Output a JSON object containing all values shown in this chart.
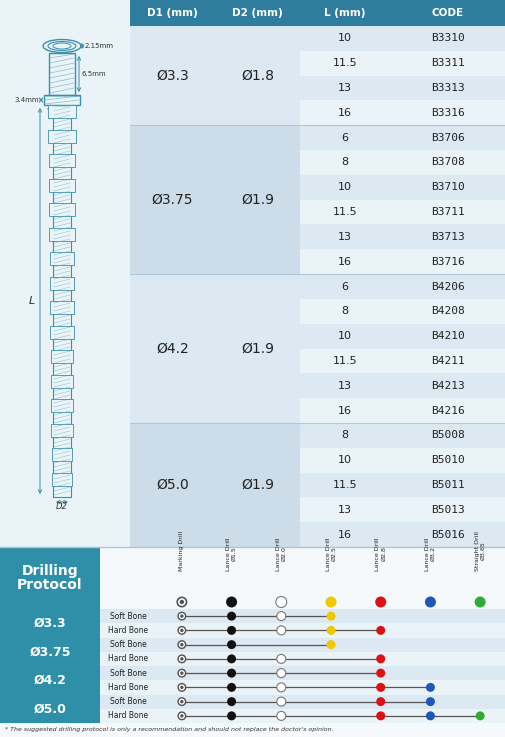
{
  "header_bg": "#2e7d9e",
  "row_light": "#dce8f2",
  "row_alt": "#eaf3f8",
  "left_bg": "#eaf3f8",
  "drilling_blue": "#2e8fa8",
  "col_headers": [
    "D1 (mm)",
    "D2 (mm)",
    "L (mm)",
    "CODE"
  ],
  "groups": [
    {
      "d1": "Ø3.3",
      "d2": "Ø1.8",
      "rows": [
        [
          "10",
          "B3310"
        ],
        [
          "11.5",
          "B3311"
        ],
        [
          "13",
          "B3313"
        ],
        [
          "16",
          "B3316"
        ]
      ]
    },
    {
      "d1": "Ø3.75",
      "d2": "Ø1.9",
      "rows": [
        [
          "6",
          "B3706"
        ],
        [
          "8",
          "B3708"
        ],
        [
          "10",
          "B3710"
        ],
        [
          "11.5",
          "B3711"
        ],
        [
          "13",
          "B3713"
        ],
        [
          "16",
          "B3716"
        ]
      ]
    },
    {
      "d1": "Ø4.2",
      "d2": "Ø1.9",
      "rows": [
        [
          "6",
          "B4206"
        ],
        [
          "8",
          "B4208"
        ],
        [
          "10",
          "B4210"
        ],
        [
          "11.5",
          "B4211"
        ],
        [
          "13",
          "B4213"
        ],
        [
          "16",
          "B4216"
        ]
      ]
    },
    {
      "d1": "Ø5.0",
      "d2": "Ø1.9",
      "rows": [
        [
          "8",
          "B5008"
        ],
        [
          "10",
          "B5010"
        ],
        [
          "11.5",
          "B5011"
        ],
        [
          "13",
          "B5013"
        ],
        [
          "16",
          "B5016"
        ]
      ]
    }
  ],
  "drill_labels": [
    "Marking Drill",
    "Lance Drill\nØ1.5",
    "Lance Drill\nØ2.0",
    "Lance Drill\nØ2.5",
    "Lance Drill\nØ2.8",
    "Lance Drill\nØ3.2",
    "Straight Drill\nØ3.65"
  ],
  "drill_colors": [
    "#444444",
    "#111111",
    "#ffffff",
    "#f0c800",
    "#dd1111",
    "#2255bb",
    "#33aa33"
  ],
  "drill_rows": [
    {
      "bone": "Soft Bone",
      "stops": [
        0,
        1,
        2,
        3
      ]
    },
    {
      "bone": "Hard Bone",
      "stops": [
        0,
        1,
        2,
        3,
        4
      ]
    },
    {
      "bone": "Soft Bone",
      "stops": [
        0,
        1,
        3
      ]
    },
    {
      "bone": "Hard Bone",
      "stops": [
        0,
        1,
        2,
        4
      ]
    },
    {
      "bone": "Soft Bone",
      "stops": [
        0,
        1,
        2,
        4
      ]
    },
    {
      "bone": "Hard Bone",
      "stops": [
        0,
        1,
        2,
        4,
        5
      ]
    },
    {
      "bone": "Soft Bone",
      "stops": [
        0,
        1,
        2,
        4,
        5
      ]
    },
    {
      "bone": "Hard Bone",
      "stops": [
        0,
        1,
        2,
        4,
        5,
        6
      ]
    }
  ],
  "size_labels": [
    "Ø3.3",
    "Ø3.75",
    "Ø4.2",
    "Ø5.0"
  ],
  "footnote": "* The suggested drilling protocol is only a recommendation and should not replace the doctor's opinion."
}
